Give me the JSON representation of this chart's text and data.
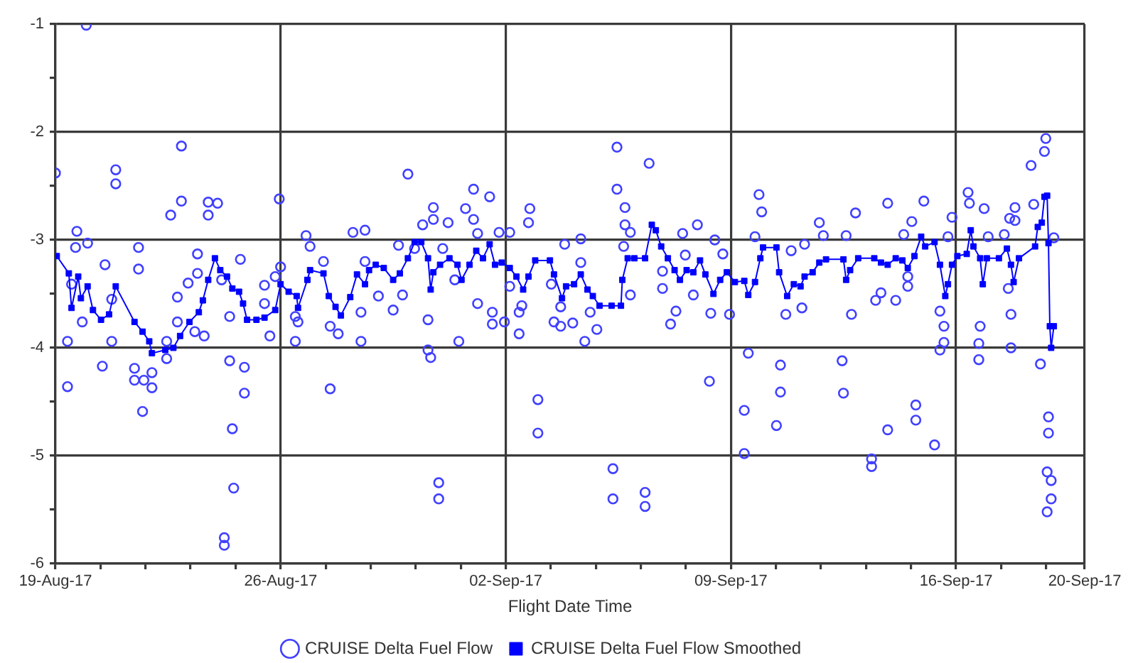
{
  "chart_data": {
    "type": "scatter",
    "xlabel": "Flight Date Time",
    "xlim": [
      "--08-19",
      "--09-20"
    ],
    "xticks": [
      {
        "value": "--08-19",
        "label": "19-Aug-17"
      },
      {
        "value": "--08-20T09:36",
        "label": null
      },
      {
        "value": "--08-21T19:12",
        "label": null
      },
      {
        "value": "--08-23T04:48",
        "label": null
      },
      {
        "value": "--08-24T14:24",
        "label": null
      },
      {
        "value": "--08-26",
        "label": "26-Aug-17"
      },
      {
        "value": "--08-27T09:36",
        "label": null
      },
      {
        "value": "--08-28T19:12",
        "label": null
      },
      {
        "value": "--08-30T04:48",
        "label": null
      },
      {
        "value": "--08-31T14:24",
        "label": null
      },
      {
        "value": "--09-02",
        "label": "02-Sep-17"
      },
      {
        "value": "--09-03T09:36",
        "label": null
      },
      {
        "value": "--09-04T19:12",
        "label": null
      },
      {
        "value": "--09-06T04:48",
        "label": null
      },
      {
        "value": "--09-07T14:24",
        "label": null
      },
      {
        "value": "--09-09",
        "label": "09-Sep-17"
      },
      {
        "value": "--09-10T09:36",
        "label": null
      },
      {
        "value": "--09-11T19:12",
        "label": null
      },
      {
        "value": "--09-13T04:48",
        "label": null
      },
      {
        "value": "--09-14T14:24",
        "label": null
      },
      {
        "value": "--09-16",
        "label": "16-Sep-17"
      },
      {
        "value": "--09-17T09:36",
        "label": null
      },
      {
        "value": "--09-18T19:12",
        "label": null
      },
      {
        "value": "--09-20",
        "label": "20-Sep-17"
      }
    ],
    "ylim": [
      -6,
      -1
    ],
    "yticks": [
      -1,
      {
        "value": -1.5,
        "label": null
      },
      -2,
      {
        "value": -2.5,
        "label": null
      },
      -3,
      {
        "value": -3.5,
        "label": null
      },
      -4,
      {
        "value": -4.5,
        "label": null
      },
      -5,
      {
        "value": -5.5,
        "label": null
      },
      -6
    ],
    "grid": true,
    "legend": "bottom",
    "line_style": "solid",
    "series": [
      {
        "name": "CRUISE Delta Fuel Flow",
        "type": "scatter",
        "marker": "circle",
        "color": "#4040ff",
        "x": [
          "--08-19T00:00",
          "--08-19T09:00",
          "--08-19T09:00",
          "--08-19T12:00",
          "--08-19T15:00",
          "--08-19T16:00",
          "--08-19T20:00",
          "--08-19T23:00",
          "--08-20T00:00",
          "--08-20T11:00",
          "--08-20T13:00",
          "--08-20T18:00",
          "--08-20T18:00",
          "--08-20T21:00",
          "--08-20T21:00",
          "--08-21T11:00",
          "--08-21T11:00",
          "--08-21T14:00",
          "--08-21T14:00",
          "--08-21T17:00",
          "--08-21T18:00",
          "--08-22T00:00",
          "--08-22T00:00",
          "--08-22T11:00",
          "--08-22T11:00",
          "--08-22T14:00",
          "--08-22T19:00",
          "--08-22T19:00",
          "--08-22T22:00",
          "--08-22T22:00",
          "--08-23T03:00",
          "--08-23T08:00",
          "--08-23T10:00",
          "--08-23T10:00",
          "--08-23T15:00",
          "--08-23T18:00",
          "--08-23T18:00",
          "--08-24T01:00",
          "--08-24T04:00",
          "--08-24T06:00",
          "--08-24T06:00",
          "--08-24T10:00",
          "--08-24T10:00",
          "--08-24T12:00",
          "--08-24T13:00",
          "--08-24T18:00",
          "--08-24T21:00",
          "--08-24T21:00",
          "--08-25T12:00",
          "--08-25T12:00",
          "--08-25T16:00",
          "--08-25T20:00",
          "--08-25T23:00",
          "--08-26T00:00",
          "--08-26T11:00",
          "--08-26T11:00",
          "--08-26T13:00",
          "--08-26T19:00",
          "--08-26T22:00",
          "--08-27T08:00",
          "--08-27T13:00",
          "--08-27T13:00",
          "--08-27T19:00",
          "--08-28T06:00",
          "--08-28T12:00",
          "--08-28T12:00",
          "--08-28T15:00",
          "--08-28T15:00",
          "--08-29T01:00",
          "--08-29T12:00",
          "--08-29T16:00",
          "--08-29T19:00",
          "--08-29T23:00",
          "--08-30T04:00",
          "--08-30T10:00",
          "--08-30T14:00",
          "--08-30T14:00",
          "--08-30T16:00",
          "--08-30T18:00",
          "--08-30T18:00",
          "--08-30T22:00",
          "--08-30T22:00",
          "--08-31T01:00",
          "--08-31T05:00",
          "--08-31T10:00",
          "--08-31T13:00",
          "--08-31T18:00",
          "--09-01T00:00",
          "--09-01T00:00",
          "--09-01T03:00",
          "--09-01T03:00",
          "--09-01T12:00",
          "--09-01T14:00",
          "--09-01T14:00",
          "--09-01T19:00",
          "--09-01T23:00",
          "--09-02T03:00",
          "--09-02T03:00",
          "--09-02T10:00",
          "--09-02T10:00",
          "--09-02T12:00",
          "--09-02T17:00",
          "--09-02T18:00",
          "--09-03T00:00",
          "--09-03T00:00",
          "--09-03T10:00",
          "--09-03T12:00",
          "--09-03T17:00",
          "--09-03T17:00",
          "--09-03T20:00",
          "--09-04T02:00",
          "--09-04T08:00",
          "--09-04T08:00",
          "--09-04T11:00",
          "--09-04T15:00",
          "--09-04T20:00",
          "--09-05T08:00",
          "--09-05T08:00",
          "--09-05T11:00",
          "--09-05T11:00",
          "--09-05T16:00",
          "--09-05T17:00",
          "--09-05T17:00",
          "--09-05T21:00",
          "--09-05T21:00",
          "--09-06T08:00",
          "--09-06T08:00",
          "--09-06T11:00",
          "--09-06T21:00",
          "--09-06T21:00",
          "--09-07T03:00",
          "--09-07T07:00",
          "--09-07T12:00",
          "--09-07T14:00",
          "--09-07T20:00",
          "--09-07T23:00",
          "--09-08T08:00",
          "--09-08T09:00",
          "--09-08T12:00",
          "--09-08T18:00",
          "--09-08T23:00",
          "--09-09T10:00",
          "--09-09T10:00",
          "--09-09T13:00",
          "--09-09T18:00",
          "--09-09T21:00",
          "--09-09T23:00",
          "--09-10T10:00",
          "--09-10T13:00",
          "--09-10T13:00",
          "--09-10T17:00",
          "--09-10T21:00",
          "--09-11T05:00",
          "--09-11T07:00",
          "--09-11T18:00",
          "--09-11T21:00",
          "--09-12T11:00",
          "--09-12T12:00",
          "--09-12T14:00",
          "--09-12T18:00",
          "--09-12T21:00",
          "--09-13T09:00",
          "--09-13T09:00",
          "--09-13T12:00",
          "--09-13T16:00",
          "--09-13T21:00",
          "--09-13T21:00",
          "--09-14T03:00",
          "--09-14T09:00",
          "--09-14T12:00",
          "--09-14T12:00",
          "--09-14T15:00",
          "--09-14T18:00",
          "--09-14T18:00",
          "--09-15T00:00",
          "--09-15T08:00",
          "--09-15T12:00",
          "--09-15T12:00",
          "--09-15T15:00",
          "--09-15T15:00",
          "--09-15T18:00",
          "--09-15T21:00",
          "--09-16T09:00",
          "--09-16T10:00",
          "--09-16T17:00",
          "--09-16T17:00",
          "--09-16T18:00",
          "--09-16T21:00",
          "--09-17T00:00",
          "--09-17T12:00",
          "--09-17T15:00",
          "--09-17T16:00",
          "--09-17T17:00",
          "--09-17T17:00",
          "--09-17T20:00",
          "--09-17T20:00",
          "--09-18T08:00",
          "--09-18T10:00",
          "--09-18T15:00",
          "--09-18T18:00",
          "--09-18T19:00",
          "--09-18T20:00",
          "--09-18T20:00",
          "--09-18T21:00",
          "--09-18T21:00",
          "--09-18T23:00",
          "--09-18T23:00",
          "--09-19T01:00"
        ],
        "values": [
          -2.38,
          -3.94,
          -4.36,
          -3.41,
          -3.07,
          -2.92,
          -3.76,
          -1.01,
          -3.03,
          -4.17,
          -3.23,
          -3.94,
          -3.55,
          -2.35,
          -2.48,
          -4.19,
          -4.3,
          -3.07,
          -3.27,
          -4.59,
          -4.3,
          -4.23,
          -4.37,
          -3.94,
          -4.1,
          -2.77,
          -3.53,
          -3.76,
          -2.13,
          -2.64,
          -3.4,
          -3.85,
          -3.13,
          -3.31,
          -3.89,
          -2.65,
          -2.77,
          -2.66,
          -3.37,
          -5.76,
          -5.83,
          -3.71,
          -4.12,
          -4.75,
          -5.3,
          -3.18,
          -4.18,
          -4.42,
          -3.42,
          -3.59,
          -3.89,
          -3.34,
          -2.62,
          -3.25,
          -3.94,
          -3.71,
          -3.76,
          -2.96,
          -3.06,
          -3.2,
          -3.8,
          -4.38,
          -3.87,
          -2.93,
          -3.67,
          -3.94,
          -2.91,
          -3.2,
          -3.52,
          -3.65,
          -3.05,
          -3.51,
          -2.39,
          -3.08,
          -2.86,
          -3.74,
          -4.02,
          -4.09,
          -2.7,
          -2.81,
          -5.25,
          -5.4,
          -3.08,
          -2.84,
          -3.37,
          -3.94,
          -2.71,
          -2.53,
          -2.81,
          -2.94,
          -3.59,
          -2.6,
          -3.67,
          -3.78,
          -2.93,
          -3.76,
          -2.93,
          -3.43,
          -3.67,
          -3.87,
          -3.61,
          -2.84,
          -2.71,
          -4.48,
          -4.79,
          -3.41,
          -3.76,
          -3.62,
          -3.8,
          -3.04,
          -3.77,
          -2.99,
          -3.21,
          -3.94,
          -3.67,
          -3.83,
          -5.12,
          -5.4,
          -2.14,
          -2.53,
          -3.06,
          -2.7,
          -2.86,
          -2.93,
          -3.51,
          -5.34,
          -5.47,
          -2.29,
          -3.29,
          -3.45,
          -3.78,
          -3.66,
          -2.94,
          -3.14,
          -3.51,
          -2.86,
          -4.31,
          -3.68,
          -3.0,
          -3.13,
          -3.69,
          -4.58,
          -4.98,
          -4.05,
          -2.97,
          -2.58,
          -2.74,
          -4.72,
          -4.16,
          -4.41,
          -3.69,
          -3.1,
          -3.63,
          -3.04,
          -2.84,
          -2.96,
          -4.12,
          -4.42,
          -2.96,
          -3.69,
          -2.75,
          -5.03,
          -5.1,
          -3.56,
          -3.49,
          -2.66,
          -4.76,
          -3.56,
          -2.95,
          -3.34,
          -3.43,
          -2.83,
          -4.53,
          -4.67,
          -2.64,
          -4.9,
          -3.66,
          -4.02,
          -3.8,
          -3.95,
          -2.97,
          -2.79,
          -2.56,
          -2.66,
          -3.96,
          -4.11,
          -3.8,
          -2.71,
          -2.97,
          -2.95,
          -3.45,
          -2.8,
          -3.69,
          -4.0,
          -2.7,
          -2.82,
          -2.31,
          -2.67,
          -4.15,
          -2.18,
          -2.06,
          -5.15,
          -5.52,
          -4.64,
          -4.79,
          -5.23,
          -5.4,
          -2.98
        ]
      },
      {
        "name": "CRUISE Delta Fuel Flow Smoothed",
        "type": "line",
        "marker": "square",
        "color": "#0000ff",
        "x": [
          "--08-19T01:00",
          "--08-19T10:00",
          "--08-19T12:00",
          "--08-19T17:00",
          "--08-19T19:00",
          "--08-20T00:00",
          "--08-20T04:00",
          "--08-20T10:00",
          "--08-20T16:00",
          "--08-20T21:00",
          "--08-21T11:00",
          "--08-21T17:00",
          "--08-21T22:00",
          "--08-22T00:00",
          "--08-22T10:00",
          "--08-22T16:00",
          "--08-22T21:00",
          "--08-23T04:00",
          "--08-23T11:00",
          "--08-23T14:00",
          "--08-23T18:00",
          "--08-23T23:00",
          "--08-24T03:00",
          "--08-24T08:00",
          "--08-24T12:00",
          "--08-24T17:00",
          "--08-24T20:00",
          "--08-24T23:00",
          "--08-25T06:00",
          "--08-25T12:00",
          "--08-25T20:00",
          "--08-26T00:00",
          "--08-26T06:00",
          "--08-26T12:00",
          "--08-26T13:00",
          "--08-26T20:00",
          "--08-26T22:00",
          "--08-27T08:00",
          "--08-27T12:00",
          "--08-27T17:00",
          "--08-27T21:00",
          "--08-28T04:00",
          "--08-28T09:00",
          "--08-28T15:00",
          "--08-28T18:00",
          "--08-28T23:00",
          "--08-29T05:00",
          "--08-29T12:00",
          "--08-29T17:00",
          "--08-29T23:00",
          "--08-30T04:00",
          "--08-30T09:00",
          "--08-30T14:00",
          "--08-30T16:00",
          "--08-30T18:00",
          "--08-30T23:00",
          "--08-31T06:00",
          "--08-31T12:00",
          "--08-31T15:00",
          "--08-31T21:00",
          "--09-01T02:00",
          "--09-01T07:00",
          "--09-01T12:00",
          "--09-01T16:00",
          "--09-01T21:00",
          "--09-02T03:00",
          "--09-02T08:00",
          "--09-02T13:00",
          "--09-02T17:00",
          "--09-02T22:00",
          "--09-03T09:00",
          "--09-03T12:00",
          "--09-03T18:00",
          "--09-03T21:00",
          "--09-04T03:00",
          "--09-04T08:00",
          "--09-04T13:00",
          "--09-04T17:00",
          "--09-04T22:00",
          "--09-05T07:00",
          "--09-05T14:00",
          "--09-05T15:00",
          "--09-05T19:00",
          "--09-06T00:00",
          "--09-06T08:00",
          "--09-06T13:00",
          "--09-06T16:00",
          "--09-06T20:00",
          "--09-07T01:00",
          "--09-07T06:00",
          "--09-07T10:00",
          "--09-07T15:00",
          "--09-07T20:00",
          "--09-08T01:00",
          "--09-08T05:00",
          "--09-08T11:00",
          "--09-08T16:00",
          "--09-08T21:00",
          "--09-09T03:00",
          "--09-09T10:00",
          "--09-09T13:00",
          "--09-09T18:00",
          "--09-09T22:00",
          "--09-10T00:00",
          "--09-10T10:00",
          "--09-10T12:00",
          "--09-10T18:00",
          "--09-10T23:00",
          "--09-11T04:00",
          "--09-11T07:00",
          "--09-11T13:00",
          "--09-11T18:00",
          "--09-11T23:00",
          "--09-12T12:00",
          "--09-12T14:00",
          "--09-12T17:00",
          "--09-12T23:00",
          "--09-13T11:00",
          "--09-13T16:00",
          "--09-13T21:00",
          "--09-14T03:00",
          "--09-14T08:00",
          "--09-14T12:00",
          "--09-14T17:00",
          "--09-14T22:00",
          "--09-15T01:00",
          "--09-15T08:00",
          "--09-15T12:00",
          "--09-15T16:00",
          "--09-15T18:00",
          "--09-15T21:00",
          "--09-16T01:00",
          "--09-16T08:00",
          "--09-16T11:00",
          "--09-16T13:00",
          "--09-16T18:00",
          "--09-16T20:00",
          "--09-16T23:00",
          "--09-17T08:00",
          "--09-17T14:00",
          "--09-17T17:00",
          "--09-17T19:00",
          "--09-17T23:00",
          "--09-18T11:00",
          "--09-18T13:00",
          "--09-18T16:00",
          "--09-18T18:00",
          "--09-18T20:00",
          "--09-18T21:00",
          "--09-18T22:00",
          "--09-18T23:00",
          "--09-19T01:00"
        ],
        "values": [
          -3.15,
          -3.31,
          -3.63,
          -3.34,
          -3.54,
          -3.43,
          -3.65,
          -3.74,
          -3.69,
          -3.43,
          -3.76,
          -3.85,
          -3.94,
          -4.05,
          -4.02,
          -4.0,
          -3.89,
          -3.76,
          -3.67,
          -3.56,
          -3.37,
          -3.17,
          -3.28,
          -3.34,
          -3.45,
          -3.48,
          -3.59,
          -3.74,
          -3.74,
          -3.72,
          -3.65,
          -3.41,
          -3.48,
          -3.52,
          -3.63,
          -3.37,
          -3.28,
          -3.31,
          -3.52,
          -3.62,
          -3.7,
          -3.53,
          -3.32,
          -3.41,
          -3.28,
          -3.23,
          -3.26,
          -3.37,
          -3.31,
          -3.17,
          -3.02,
          -3.02,
          -3.17,
          -3.46,
          -3.3,
          -3.23,
          -3.17,
          -3.23,
          -3.37,
          -3.23,
          -3.1,
          -3.17,
          -3.04,
          -3.23,
          -3.21,
          -3.26,
          -3.34,
          -3.46,
          -3.34,
          -3.19,
          -3.19,
          -3.32,
          -3.54,
          -3.43,
          -3.41,
          -3.32,
          -3.46,
          -3.52,
          -3.61,
          -3.61,
          -3.61,
          -3.37,
          -3.17,
          -3.17,
          -3.17,
          -2.86,
          -2.91,
          -3.06,
          -3.17,
          -3.28,
          -3.37,
          -3.28,
          -3.3,
          -3.19,
          -3.32,
          -3.5,
          -3.37,
          -3.3,
          -3.39,
          -3.38,
          -3.51,
          -3.39,
          -3.17,
          -3.07,
          -3.07,
          -3.3,
          -3.52,
          -3.41,
          -3.43,
          -3.34,
          -3.3,
          -3.21,
          -3.18,
          -3.18,
          -3.37,
          -3.28,
          -3.17,
          -3.17,
          -3.21,
          -3.23,
          -3.17,
          -3.19,
          -3.26,
          -3.15,
          -2.97,
          -3.06,
          -3.02,
          -3.23,
          -3.52,
          -3.41,
          -3.23,
          -3.15,
          -3.13,
          -2.91,
          -3.06,
          -3.17,
          -3.41,
          -3.17,
          -3.17,
          -3.08,
          -3.23,
          -3.39,
          -3.17,
          -3.06,
          -2.88,
          -2.84,
          -2.6,
          -2.59,
          -3.03,
          -3.8,
          -4.0,
          -3.8
        ]
      }
    ]
  }
}
